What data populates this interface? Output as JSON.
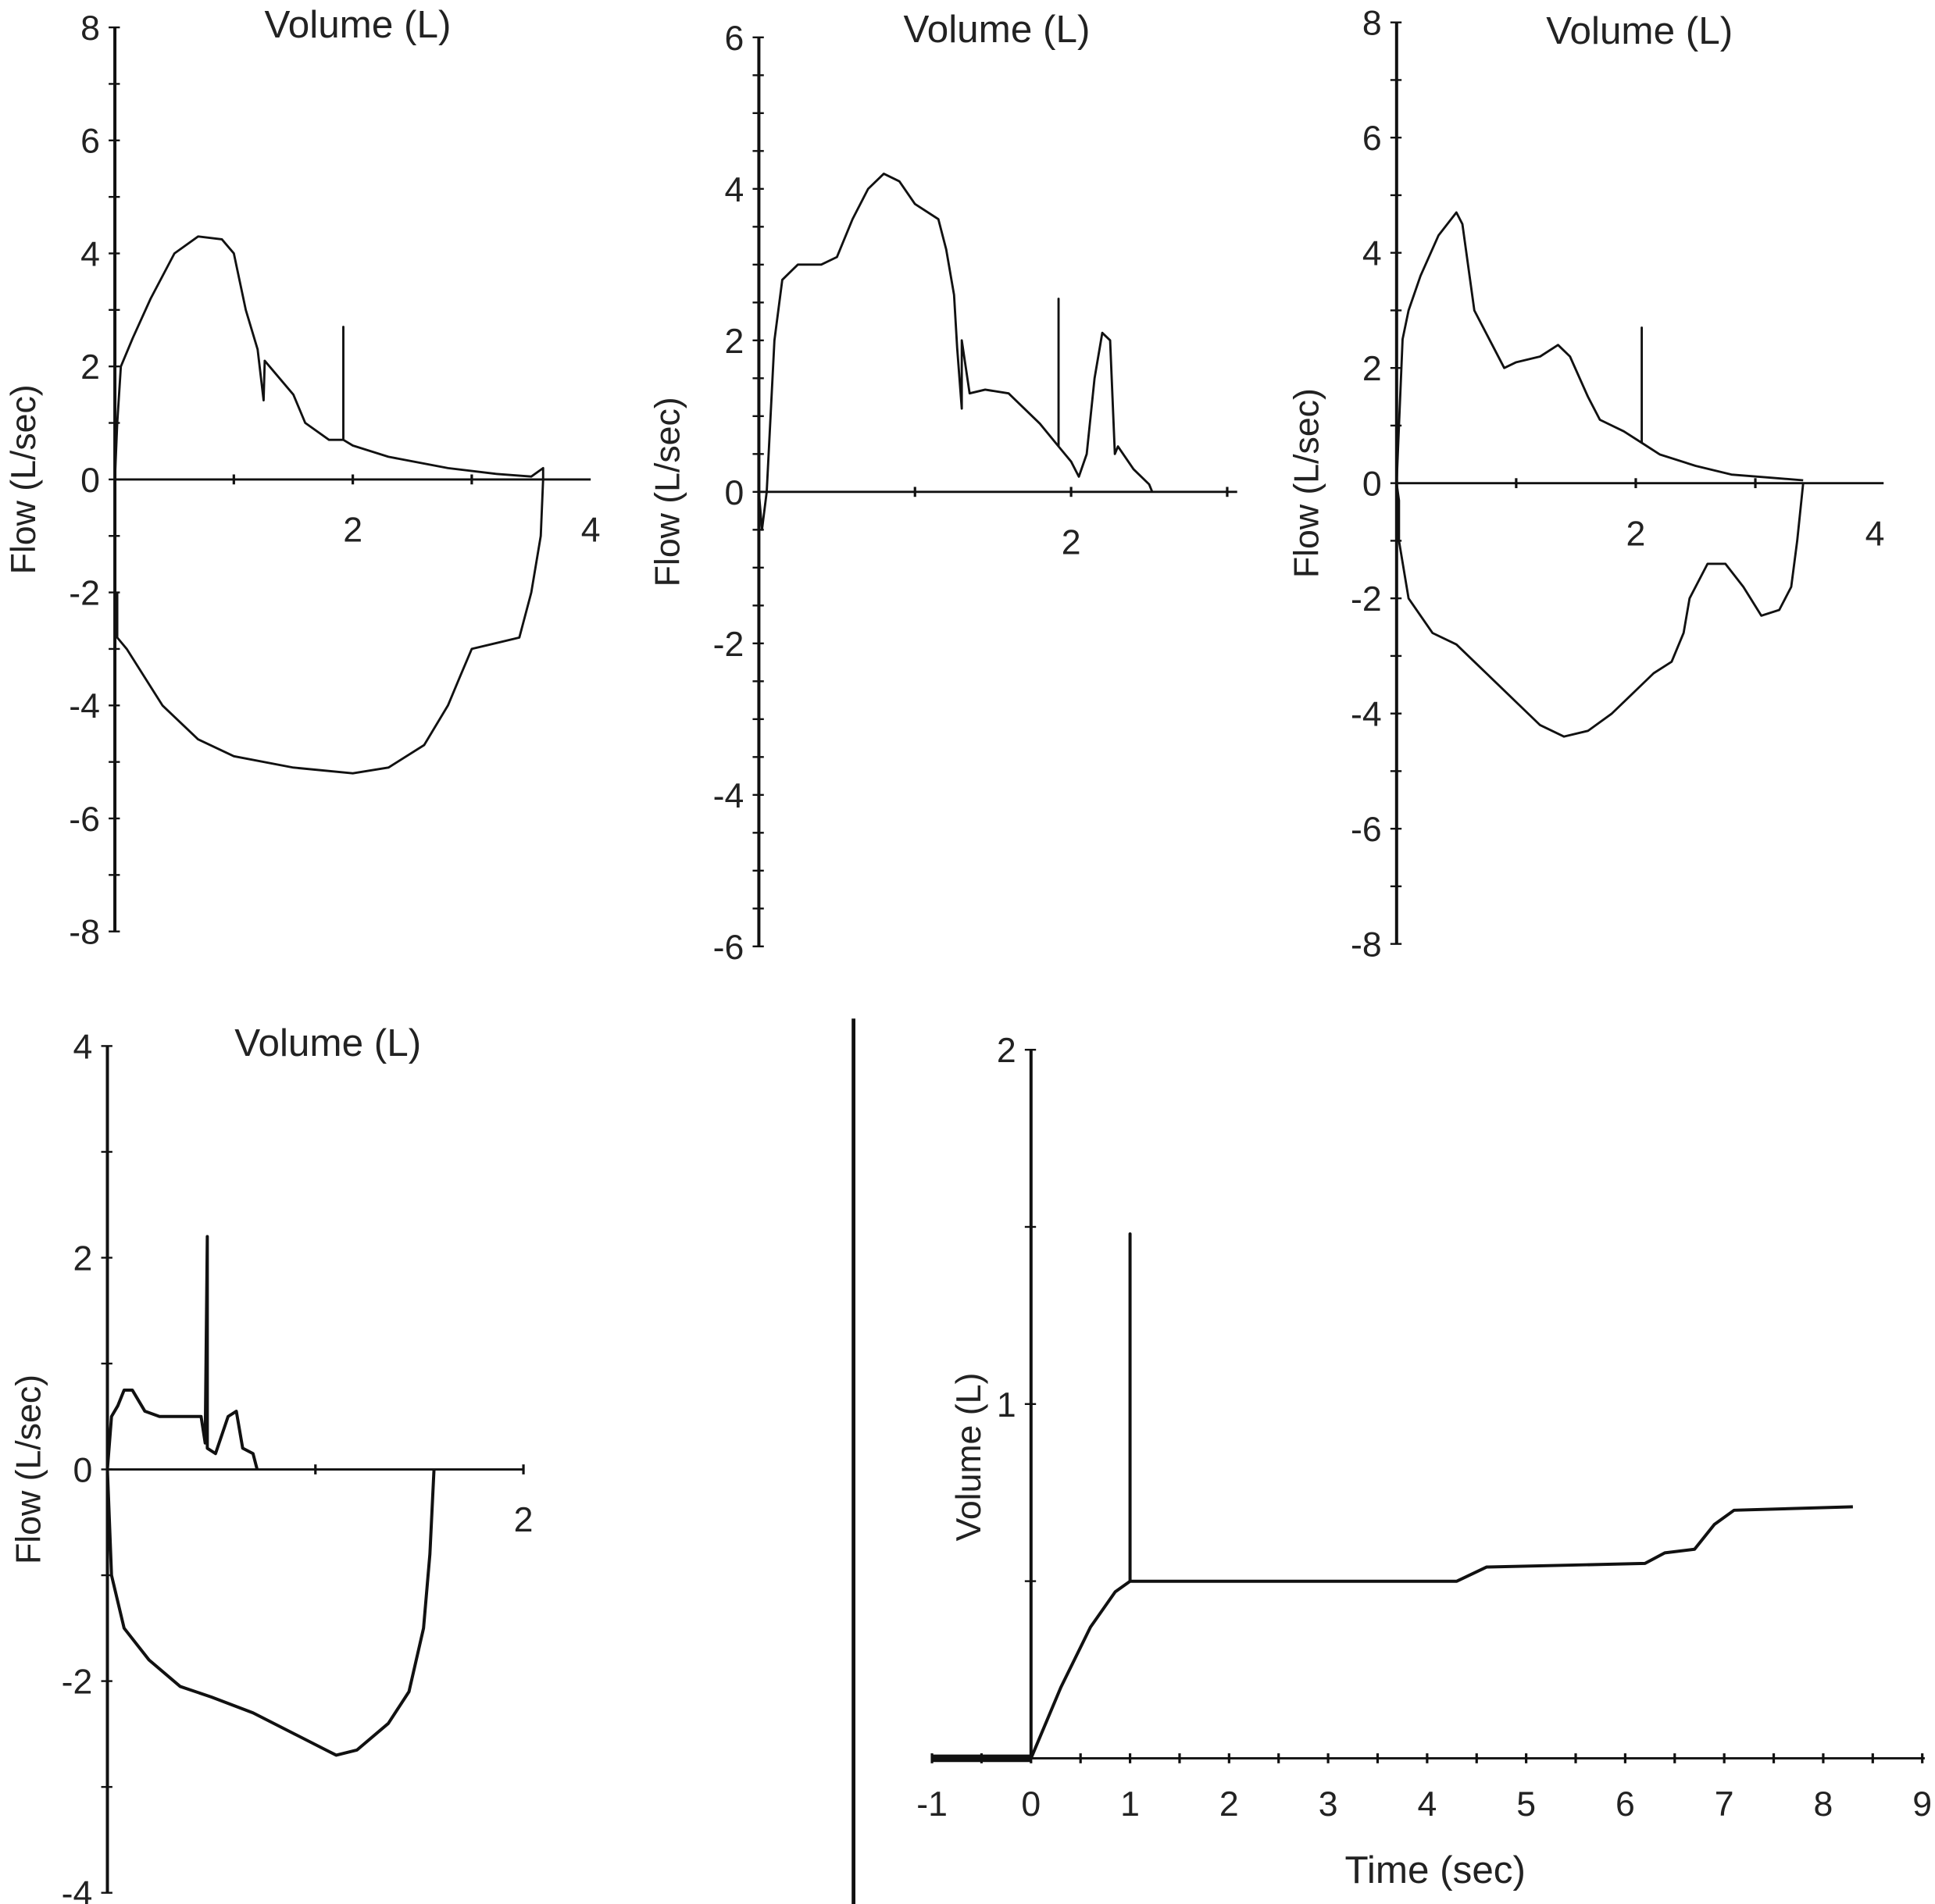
{
  "chart_data": [
    {
      "type": "line",
      "title": "Volume (L)",
      "ylabel": "Flow (L/sec)",
      "xlim": [
        0,
        4
      ],
      "ylim": [
        -8,
        8
      ],
      "xticks": [
        1,
        2,
        3
      ],
      "xtick_labels": [
        {
          "v": 2,
          "t": "2"
        },
        {
          "v": 4,
          "t": "4"
        }
      ],
      "yticks": [
        -8,
        -7,
        -6,
        -5,
        -4,
        -3,
        -2,
        -1,
        0,
        1,
        2,
        3,
        4,
        5,
        6,
        7,
        8
      ],
      "ytick_labels": [
        {
          "v": 8,
          "t": "8"
        },
        {
          "v": 6,
          "t": "6"
        },
        {
          "v": 4,
          "t": "4"
        },
        {
          "v": 2,
          "t": "2"
        },
        {
          "v": 0,
          "t": "0"
        },
        {
          "v": -2,
          "t": "-2"
        },
        {
          "v": -4,
          "t": "-4"
        },
        {
          "v": -6,
          "t": "-6"
        },
        {
          "v": -8,
          "t": "-8"
        }
      ],
      "series": [
        {
          "x": [
            0,
            0.02,
            0.05,
            0.15,
            0.3,
            0.5,
            0.7,
            0.9,
            1.0,
            1.05,
            1.1,
            1.2,
            1.25,
            1.26,
            1.5,
            1.6,
            1.8,
            1.92,
            1.92,
            1.92,
            2.0,
            2.3,
            2.8,
            3.2,
            3.5,
            3.6,
            3.6
          ],
          "y": [
            0,
            1,
            2,
            2.5,
            3.2,
            4,
            4.3,
            4.25,
            4,
            3.5,
            3,
            2.3,
            1.4,
            2.1,
            1.5,
            1.0,
            0.7,
            0.7,
            2.7,
            0.7,
            0.6,
            0.4,
            0.2,
            0.1,
            0.05,
            0.2,
            0
          ]
        },
        {
          "x": [
            3.6,
            3.58,
            3.5,
            3.4,
            3.0,
            2.9,
            2.8,
            2.6,
            2.3,
            2.0,
            1.5,
            1.0,
            0.7,
            0.4,
            0.1,
            0.02,
            0.02
          ],
          "y": [
            0,
            -1,
            -2,
            -2.8,
            -3,
            -3.5,
            -4,
            -4.7,
            -5.1,
            -5.2,
            -5.1,
            -4.9,
            -4.6,
            -4,
            -3,
            -2.8,
            -2
          ]
        }
      ]
    },
    {
      "type": "line",
      "title": "Volume (L)",
      "ylabel": "Flow (L/sec)",
      "xlim": [
        0,
        3
      ],
      "ylim": [
        -6,
        6
      ],
      "xticks": [
        1,
        2,
        3
      ],
      "xtick_labels": [
        {
          "v": 2,
          "t": "2"
        }
      ],
      "yticks": [
        -6,
        -5.5,
        -5,
        -4.5,
        -4,
        -3.5,
        -3,
        -2.5,
        -2,
        -1.5,
        -1,
        -0.5,
        0,
        0.5,
        1,
        1.5,
        2,
        2.5,
        3,
        3.5,
        4,
        4.5,
        5,
        5.5,
        6
      ],
      "ytick_labels": [
        {
          "v": 6,
          "t": "6"
        },
        {
          "v": 4,
          "t": "4"
        },
        {
          "v": 2,
          "t": "2"
        },
        {
          "v": 0,
          "t": "0"
        },
        {
          "v": -2,
          "t": "-2"
        },
        {
          "v": -4,
          "t": "-4"
        },
        {
          "v": -6,
          "t": "-6"
        }
      ],
      "series": [
        {
          "x": [
            0,
            0.02,
            0.05,
            0.1,
            0.15,
            0.25,
            0.4,
            0.5,
            0.6,
            0.7,
            0.8,
            0.9,
            1.0,
            1.15,
            1.2,
            1.25,
            1.27,
            1.3,
            1.3,
            1.35,
            1.45,
            1.6,
            1.8,
            1.92,
            1.92,
            1.92,
            2.0,
            2.05,
            2.1,
            2.15,
            2.2,
            2.25,
            2.28,
            2.3,
            2.4,
            2.5,
            2.52
          ],
          "y": [
            0,
            -0.5,
            0,
            2,
            2.8,
            3,
            3,
            3.1,
            3.6,
            4,
            4.2,
            4.1,
            3.8,
            3.6,
            3.2,
            2.6,
            1.9,
            1.1,
            2.0,
            1.3,
            1.35,
            1.3,
            0.9,
            0.6,
            2.55,
            0.6,
            0.4,
            0.2,
            0.5,
            1.5,
            2.1,
            2.0,
            0.5,
            0.6,
            0.3,
            0.1,
            0
          ]
        }
      ]
    },
    {
      "type": "line",
      "title": "Volume (L)",
      "ylabel": "Flow (L/sec)",
      "xlim": [
        0,
        4
      ],
      "ylim": [
        -8,
        8
      ],
      "xticks": [
        1,
        2,
        3
      ],
      "xtick_labels": [
        {
          "v": 2,
          "t": "2"
        },
        {
          "v": 4,
          "t": "4"
        }
      ],
      "yticks": [
        -8,
        -7,
        -6,
        -5,
        -4,
        -3,
        -2,
        -1,
        0,
        1,
        2,
        3,
        4,
        5,
        6,
        7,
        8
      ],
      "ytick_labels": [
        {
          "v": 8,
          "t": "8"
        },
        {
          "v": 6,
          "t": "6"
        },
        {
          "v": 4,
          "t": "4"
        },
        {
          "v": 2,
          "t": "2"
        },
        {
          "v": 0,
          "t": "0"
        },
        {
          "v": -2,
          "t": "-2"
        },
        {
          "v": -4,
          "t": "-4"
        },
        {
          "v": -6,
          "t": "-6"
        },
        {
          "v": -8,
          "t": "-8"
        }
      ],
      "series": [
        {
          "x": [
            0,
            0.02,
            0.05,
            0.1,
            0.2,
            0.35,
            0.5,
            0.55,
            0.65,
            0.75,
            0.8,
            0.9,
            1.0,
            1.2,
            1.35,
            1.45,
            1.6,
            1.7,
            1.9,
            2.05,
            2.05,
            2.05,
            2.2,
            2.5,
            2.8,
            3.1,
            3.4
          ],
          "y": [
            0,
            1,
            2.5,
            3,
            3.6,
            4.3,
            4.7,
            4.5,
            3,
            2.6,
            2.4,
            2,
            2.1,
            2.2,
            2.4,
            2.2,
            1.5,
            1.1,
            0.9,
            0.7,
            2.7,
            0.7,
            0.5,
            0.3,
            0.15,
            0.1,
            0.05
          ]
        },
        {
          "x": [
            3.4,
            3.35,
            3.3,
            3.2,
            3.05,
            2.9,
            2.75,
            2.6,
            2.45,
            2.4,
            2.3,
            2.15,
            2.0,
            1.8,
            1.6,
            1.4,
            1.2,
            1.0,
            0.7,
            0.5,
            0.3,
            0.1,
            0.02,
            0.02,
            0
          ],
          "y": [
            0,
            -1,
            -1.8,
            -2.2,
            -2.3,
            -1.8,
            -1.4,
            -1.4,
            -2.0,
            -2.6,
            -3.1,
            -3.3,
            -3.6,
            -4.0,
            -4.3,
            -4.4,
            -4.2,
            -3.8,
            -3.2,
            -2.8,
            -2.6,
            -2,
            -1,
            -0.3,
            0
          ]
        }
      ]
    },
    {
      "type": "line",
      "title": "Volume (L)",
      "ylabel": "Flow (L/sec)",
      "xlim": [
        0,
        2
      ],
      "ylim": [
        -4,
        4
      ],
      "xticks": [
        1,
        2
      ],
      "xtick_labels": [
        {
          "v": 2,
          "t": "2"
        }
      ],
      "yticks": [
        -4,
        -3,
        -2,
        -1,
        0,
        1,
        2,
        3,
        4
      ],
      "ytick_labels": [
        {
          "v": 4,
          "t": "4"
        },
        {
          "v": 2,
          "t": "2"
        },
        {
          "v": 0,
          "t": "0"
        },
        {
          "v": -2,
          "t": "-2"
        },
        {
          "v": -4,
          "t": "-4"
        }
      ],
      "series": [
        {
          "x": [
            0,
            0.02,
            0.05,
            0.08,
            0.12,
            0.18,
            0.25,
            0.35,
            0.45,
            0.47,
            0.48,
            0.48,
            0.52,
            0.58,
            0.62,
            0.65,
            0.7,
            0.72
          ],
          "y": [
            0,
            0.5,
            0.6,
            0.75,
            0.75,
            0.55,
            0.5,
            0.5,
            0.5,
            0.25,
            2.2,
            0.2,
            0.15,
            0.5,
            0.55,
            0.2,
            0.15,
            0
          ]
        },
        {
          "x": [
            0,
            0.02,
            0.08,
            0.2,
            0.35,
            0.5,
            0.7,
            0.9,
            1.05,
            1.1,
            1.2,
            1.35,
            1.45,
            1.52,
            1.55,
            1.57
          ],
          "y": [
            0,
            -1,
            -1.5,
            -1.8,
            -2.05,
            -2.15,
            -2.3,
            -2.5,
            -2.65,
            -2.7,
            -2.65,
            -2.4,
            -2.1,
            -1.5,
            -0.8,
            0
          ]
        }
      ]
    },
    {
      "type": "line",
      "title": "",
      "xlabel": "Time (sec)",
      "ylabel": "Volume (L)",
      "xlim": [
        -1,
        9
      ],
      "ylim": [
        0,
        2
      ],
      "xticks": [
        -1,
        -0.5,
        0,
        0.5,
        1,
        1.5,
        2,
        2.5,
        3,
        3.5,
        4,
        4.5,
        5,
        5.5,
        6,
        6.5,
        7,
        7.5,
        8,
        8.5,
        9
      ],
      "xtick_labels": [
        {
          "v": -1,
          "t": "-1"
        },
        {
          "v": 0,
          "t": "0"
        },
        {
          "v": 1,
          "t": "1"
        },
        {
          "v": 2,
          "t": "2"
        },
        {
          "v": 3,
          "t": "3"
        },
        {
          "v": 4,
          "t": "4"
        },
        {
          "v": 5,
          "t": "5"
        },
        {
          "v": 6,
          "t": "6"
        },
        {
          "v": 7,
          "t": "7"
        },
        {
          "v": 8,
          "t": "8"
        },
        {
          "v": 9,
          "t": "9"
        }
      ],
      "yticks": [
        0,
        0.5,
        1,
        1.5,
        2
      ],
      "ytick_labels": [
        {
          "v": 2,
          "t": "2"
        },
        {
          "v": 1,
          "t": "1"
        }
      ],
      "series": [
        {
          "x": [
            -1,
            0,
            0.3,
            0.6,
            0.85,
            1,
            1,
            1,
            1.5,
            3,
            4.3,
            4.6,
            6.2,
            6.4,
            6.7,
            6.9,
            7.1,
            8.3
          ],
          "y": [
            0,
            0,
            0.2,
            0.37,
            0.47,
            0.5,
            1.48,
            0.5,
            0.5,
            0.5,
            0.5,
            0.54,
            0.55,
            0.58,
            0.59,
            0.66,
            0.7,
            0.71
          ]
        }
      ]
    }
  ]
}
